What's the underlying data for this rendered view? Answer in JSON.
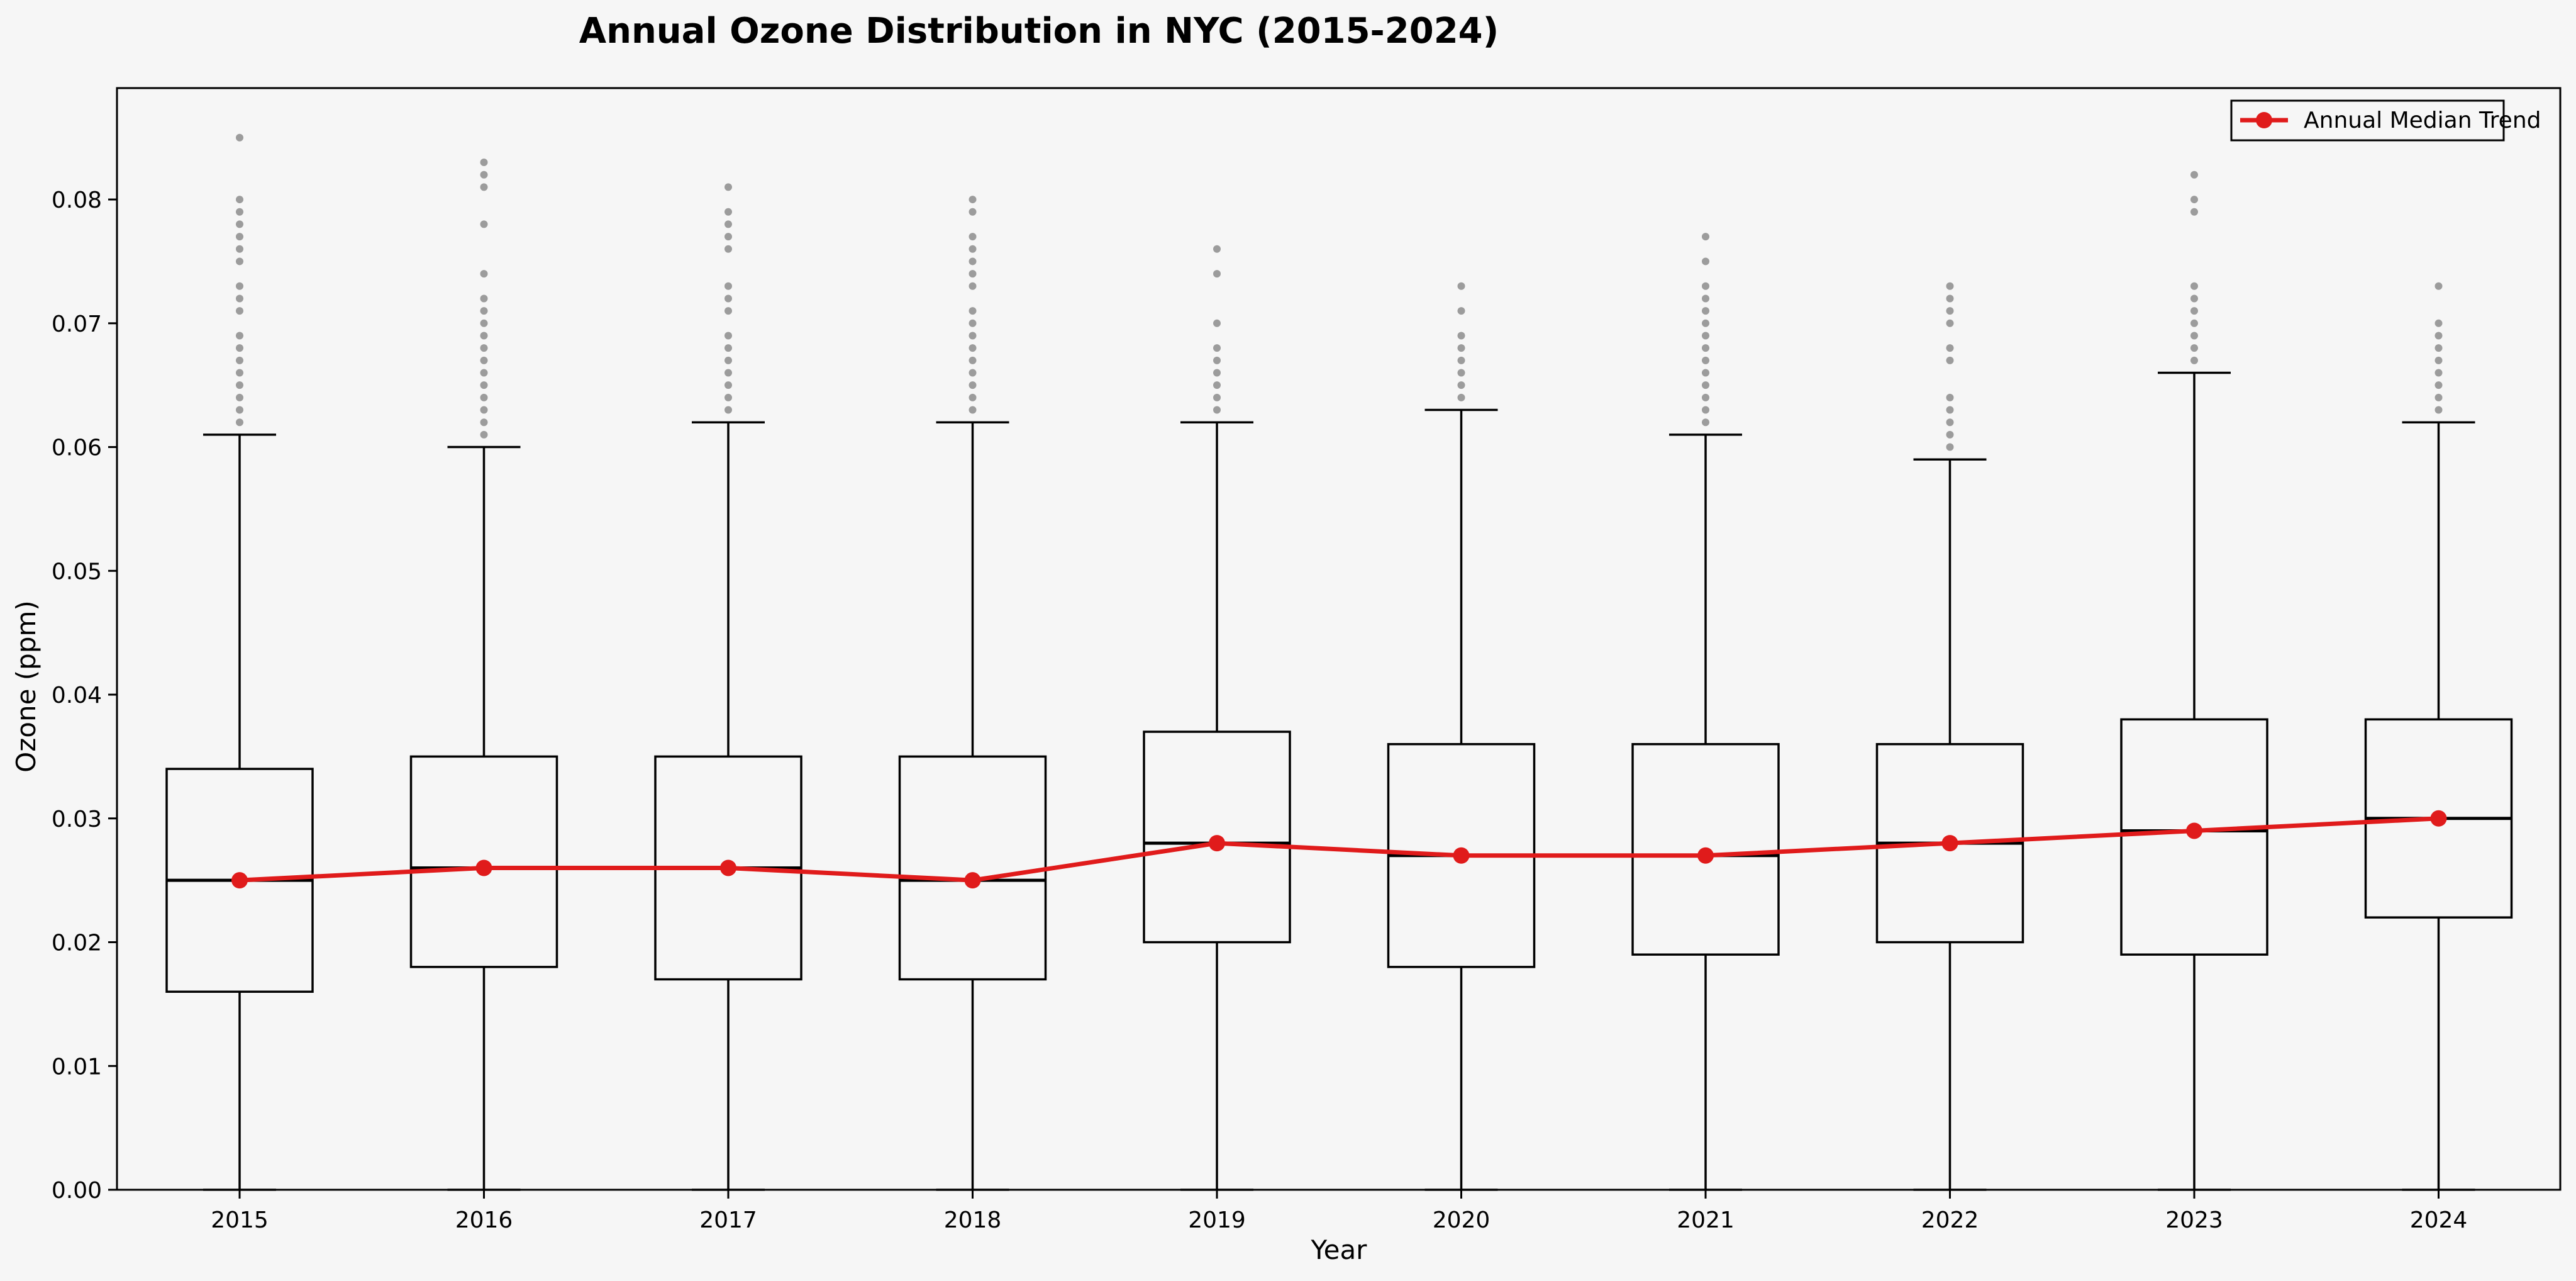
{
  "chart_data": {
    "type": "box",
    "title": "Annual Ozone Distribution in NYC (2015-2024)",
    "xlabel": "Year",
    "ylabel": "Ozone (ppm)",
    "ylim": [
      0.0,
      0.089
    ],
    "yticks": [
      0.0,
      0.01,
      0.02,
      0.03,
      0.04,
      0.05,
      0.06,
      0.07,
      0.08
    ],
    "ytick_labels": [
      "0.00",
      "0.01",
      "0.02",
      "0.03",
      "0.04",
      "0.05",
      "0.06",
      "0.07",
      "0.08"
    ],
    "grid": false,
    "legend": {
      "placement": "top-right",
      "entries": [
        "Annual Median Trend"
      ]
    },
    "categories": [
      "2015",
      "2016",
      "2017",
      "2018",
      "2019",
      "2020",
      "2021",
      "2022",
      "2023",
      "2024"
    ],
    "boxes": [
      {
        "year": "2015",
        "whislo": 0.0,
        "q1": 0.016,
        "med": 0.025,
        "q3": 0.034,
        "whishi": 0.061,
        "fliers": [
          0.062,
          0.063,
          0.064,
          0.065,
          0.066,
          0.067,
          0.068,
          0.069,
          0.071,
          0.072,
          0.073,
          0.075,
          0.076,
          0.077,
          0.078,
          0.079,
          0.08,
          0.085
        ]
      },
      {
        "year": "2016",
        "whislo": 0.0,
        "q1": 0.018,
        "med": 0.026,
        "q3": 0.035,
        "whishi": 0.06,
        "fliers": [
          0.061,
          0.062,
          0.063,
          0.064,
          0.065,
          0.066,
          0.067,
          0.068,
          0.069,
          0.07,
          0.071,
          0.072,
          0.074,
          0.078,
          0.081,
          0.082,
          0.083
        ]
      },
      {
        "year": "2017",
        "whislo": 0.0,
        "q1": 0.017,
        "med": 0.026,
        "q3": 0.035,
        "whishi": 0.062,
        "fliers": [
          0.063,
          0.064,
          0.065,
          0.066,
          0.067,
          0.068,
          0.069,
          0.071,
          0.072,
          0.073,
          0.076,
          0.077,
          0.078,
          0.079,
          0.081
        ]
      },
      {
        "year": "2018",
        "whislo": 0.0,
        "q1": 0.017,
        "med": 0.025,
        "q3": 0.035,
        "whishi": 0.062,
        "fliers": [
          0.063,
          0.064,
          0.065,
          0.066,
          0.067,
          0.068,
          0.069,
          0.07,
          0.071,
          0.073,
          0.074,
          0.075,
          0.076,
          0.077,
          0.079,
          0.08
        ]
      },
      {
        "year": "2019",
        "whislo": 0.0,
        "q1": 0.02,
        "med": 0.028,
        "q3": 0.037,
        "whishi": 0.062,
        "fliers": [
          0.063,
          0.064,
          0.065,
          0.066,
          0.067,
          0.068,
          0.07,
          0.074,
          0.076
        ]
      },
      {
        "year": "2020",
        "whislo": 0.0,
        "q1": 0.018,
        "med": 0.027,
        "q3": 0.036,
        "whishi": 0.063,
        "fliers": [
          0.064,
          0.065,
          0.066,
          0.067,
          0.068,
          0.069,
          0.071,
          0.073
        ]
      },
      {
        "year": "2021",
        "whislo": 0.0,
        "q1": 0.019,
        "med": 0.027,
        "q3": 0.036,
        "whishi": 0.061,
        "fliers": [
          0.062,
          0.063,
          0.064,
          0.065,
          0.066,
          0.067,
          0.068,
          0.069,
          0.07,
          0.071,
          0.072,
          0.073,
          0.075,
          0.077
        ]
      },
      {
        "year": "2022",
        "whislo": 0.0,
        "q1": 0.02,
        "med": 0.028,
        "q3": 0.036,
        "whishi": 0.059,
        "fliers": [
          0.06,
          0.061,
          0.062,
          0.063,
          0.064,
          0.067,
          0.068,
          0.07,
          0.071,
          0.072,
          0.073
        ]
      },
      {
        "year": "2023",
        "whislo": 0.0,
        "q1": 0.019,
        "med": 0.029,
        "q3": 0.038,
        "whishi": 0.066,
        "fliers": [
          0.067,
          0.068,
          0.069,
          0.07,
          0.071,
          0.072,
          0.073,
          0.079,
          0.08,
          0.082
        ]
      },
      {
        "year": "2024",
        "whislo": 0.0,
        "q1": 0.022,
        "med": 0.03,
        "q3": 0.038,
        "whishi": 0.062,
        "fliers": [
          0.063,
          0.064,
          0.065,
          0.066,
          0.067,
          0.068,
          0.069,
          0.07,
          0.073
        ]
      }
    ],
    "series": [
      {
        "name": "Annual Median Trend",
        "type": "line",
        "values": [
          0.025,
          0.026,
          0.026,
          0.025,
          0.028,
          0.027,
          0.027,
          0.028,
          0.029,
          0.03
        ]
      }
    ],
    "colors": {
      "trend": "#e01b1b",
      "box": "#000000",
      "flier": "#8c8c8c",
      "background": "#f6f6f6"
    }
  }
}
